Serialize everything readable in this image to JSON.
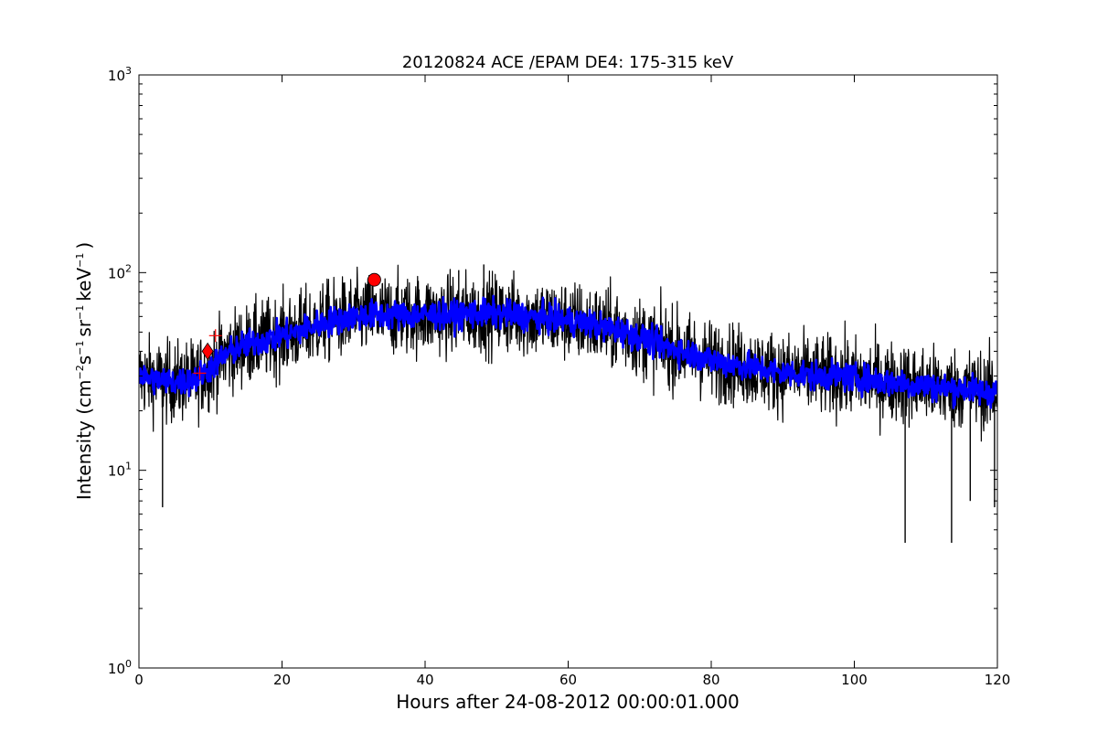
{
  "chart_data": {
    "type": "line",
    "title": "20120824 ACE /EPAM DE4: 175-315 keV",
    "xlabel": "Hours after 24-08-2012 00:00:01.000",
    "ylabel": {
      "prefix": "Intensity (cm",
      "exp1": "−2",
      "mid1": "s",
      "exp2": "−1",
      "mid2": "sr",
      "exp3": "−1",
      "mid3": "keV",
      "exp4": "−1",
      "suffix": ")"
    },
    "xlim": [
      0,
      120
    ],
    "ylim": [
      1,
      1000
    ],
    "yscale": "log",
    "grid": false,
    "xticks": [
      0,
      20,
      40,
      60,
      80,
      100,
      120
    ],
    "xtick_labels": [
      "0",
      "20",
      "40",
      "60",
      "80",
      "100",
      "120"
    ],
    "yticks": [
      {
        "value": 1,
        "base": "10",
        "exp": "0"
      },
      {
        "value": 10,
        "base": "10",
        "exp": "1"
      },
      {
        "value": 100,
        "base": "10",
        "exp": "2"
      },
      {
        "value": 1000,
        "base": "10",
        "exp": "3"
      }
    ],
    "series": [
      {
        "kind": "noisy-line",
        "color": "#000000",
        "x": [
          0,
          2,
          4,
          6,
          8,
          10,
          12,
          14,
          16,
          18,
          20,
          22,
          24,
          26,
          28,
          30,
          32,
          34,
          36,
          38,
          40,
          42,
          44,
          46,
          48,
          50,
          52,
          54,
          56,
          58,
          60,
          62,
          64,
          66,
          68,
          70,
          72,
          74,
          76,
          78,
          80,
          82,
          84,
          86,
          88,
          90,
          92,
          94,
          96,
          98,
          100,
          102,
          104,
          106,
          108,
          110,
          112,
          114,
          116,
          118,
          120
        ],
        "y": [
          30,
          29,
          28,
          28,
          29,
          33,
          38,
          42,
          44,
          46,
          48,
          50,
          53,
          56,
          58,
          60,
          61,
          61,
          61,
          61,
          61,
          61,
          61,
          62,
          62,
          62,
          61,
          60,
          59,
          58,
          57,
          56,
          54,
          52,
          50,
          47,
          44,
          42,
          40,
          38,
          36,
          35,
          34,
          33,
          32,
          31,
          31,
          30,
          30,
          30,
          29,
          29,
          28,
          28,
          27,
          27,
          26,
          26,
          26,
          25,
          25
        ],
        "band_factor": 0.5,
        "min_spikes": [
          {
            "x": 3.3,
            "y": 6.5
          },
          {
            "x": 107.1,
            "y": 4.3
          },
          {
            "x": 113.6,
            "y": 4.3
          },
          {
            "x": 116.2,
            "y": 7.0
          },
          {
            "x": 119.6,
            "y": 6.5
          }
        ],
        "max_spikes": [
          {
            "x": 48.2,
            "y": 110
          },
          {
            "x": 44.7,
            "y": 103
          }
        ]
      },
      {
        "kind": "thick-line",
        "color": "#0000ff",
        "x": [
          0,
          2,
          4,
          6,
          8,
          10,
          12,
          14,
          16,
          18,
          20,
          22,
          24,
          26,
          28,
          30,
          32,
          34,
          36,
          38,
          40,
          42,
          44,
          46,
          48,
          50,
          52,
          54,
          56,
          58,
          60,
          62,
          64,
          66,
          68,
          70,
          72,
          74,
          76,
          78,
          80,
          82,
          84,
          86,
          88,
          90,
          92,
          94,
          96,
          98,
          100,
          102,
          104,
          106,
          108,
          110,
          112,
          114,
          116,
          118,
          120
        ],
        "y": [
          30,
          29,
          28,
          28,
          29,
          33,
          38,
          42,
          44,
          46,
          48,
          50,
          53,
          56,
          58,
          60,
          61,
          61,
          61,
          61,
          61,
          61,
          61,
          62,
          62,
          62,
          61,
          60,
          59,
          58,
          57,
          56,
          54,
          52,
          50,
          47,
          44,
          42,
          40,
          38,
          36,
          35,
          34,
          33,
          32,
          31,
          31,
          30,
          30,
          30,
          29,
          29,
          28,
          28,
          27,
          27,
          26,
          26,
          26,
          25,
          25
        ],
        "band_factor": 0.18
      }
    ],
    "markers": [
      {
        "shape": "plus",
        "x": 10.7,
        "y": 48,
        "color": "#ff0000"
      },
      {
        "shape": "plus",
        "x": 8.5,
        "y": 31,
        "color": "#ff0000"
      },
      {
        "shape": "diamond",
        "x": 9.6,
        "y": 40,
        "color": "#ff0000"
      },
      {
        "shape": "circle",
        "x": 32.9,
        "y": 92,
        "color": "#ff0000"
      }
    ]
  }
}
